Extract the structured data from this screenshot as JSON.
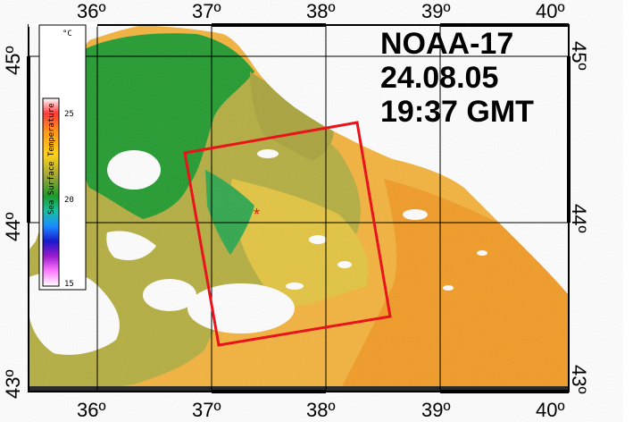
{
  "title": {
    "satellite": "NOAA-17",
    "date": "24.08.05",
    "time": "19:37 GMT"
  },
  "longitude_labels": [
    "36º",
    "37º",
    "38º",
    "39º",
    "40º"
  ],
  "latitude_labels": {
    "left": [
      "45º",
      "44º",
      "43º"
    ],
    "right": [
      "45º",
      "44º",
      "43º"
    ]
  },
  "legend": {
    "unit": "°C",
    "title": "Sea Surface Temperature",
    "ticks": [
      "25",
      "20",
      "15"
    ]
  },
  "site_marker": "*",
  "colors": {
    "land": "#ffffff",
    "cold_sst": "#1f9a2c",
    "mid_sst": "#a8a53c",
    "warm_sst": "#f5c030",
    "hot_sst": "#f29a22",
    "cloud_mask": "#ffffff",
    "box_outline": "#e8131b",
    "grid": "#000000"
  }
}
